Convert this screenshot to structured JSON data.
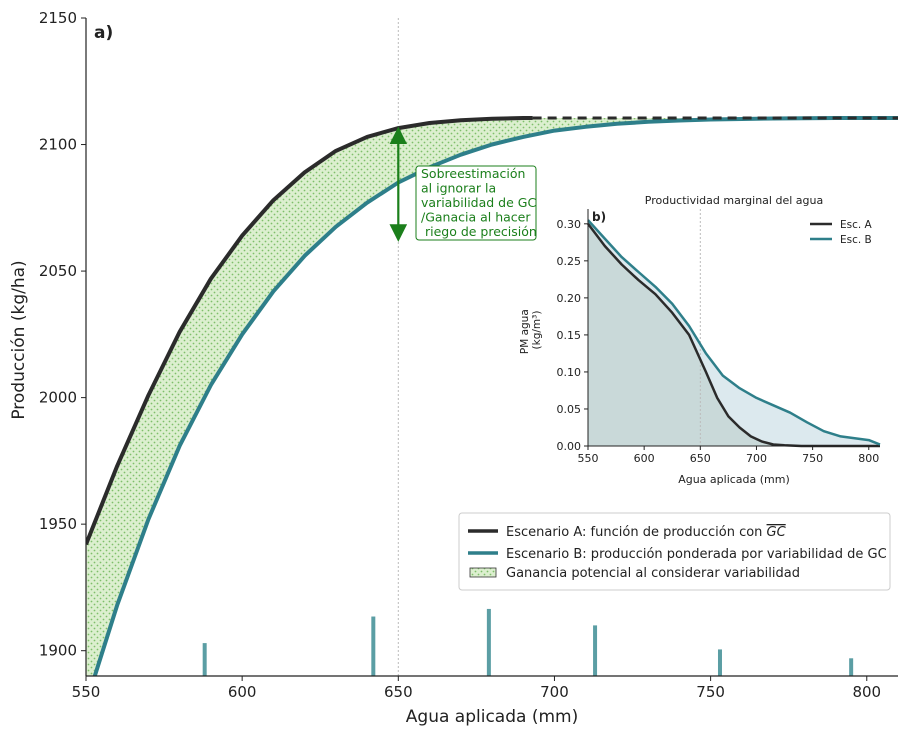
{
  "chart_data": [
    {
      "type": "line",
      "panel_label": "a)",
      "xlabel": "Agua aplicada (mm)",
      "ylabel": "Producción (kg/ha)",
      "xlim": [
        550,
        810
      ],
      "ylim": [
        1890,
        2150
      ],
      "x_ticks": [
        550,
        600,
        650,
        700,
        750,
        800
      ],
      "y_ticks": [
        1900,
        1950,
        2000,
        2050,
        2100,
        2150
      ],
      "grid": false,
      "legend_position": "lower-right",
      "series": [
        {
          "name": "Escenario A: función de producción con GC",
          "overline_part": "GC",
          "color": "#2b2b2b",
          "x": [
            550,
            560,
            570,
            580,
            590,
            600,
            610,
            620,
            630,
            640,
            650,
            660,
            670,
            680,
            690,
            693
          ],
          "y": [
            1942,
            1973,
            2001,
            2026,
            2047,
            2064,
            2078,
            2089,
            2097.5,
            2103,
            2106.5,
            2108.5,
            2109.6,
            2110.2,
            2110.5,
            2110.5
          ],
          "extension_dashed": {
            "x": [
              693,
              810
            ],
            "y": [
              2110.5,
              2110.5
            ]
          }
        },
        {
          "name": "Escenario B: producción ponderada por variabilidad de GC",
          "color": "#2e7f8a",
          "x": [
            550,
            560,
            570,
            580,
            590,
            600,
            610,
            620,
            630,
            640,
            650,
            660,
            670,
            680,
            690,
            700,
            710,
            720,
            730,
            740,
            750,
            760,
            770,
            780,
            790,
            800,
            810
          ],
          "y": [
            1879,
            1918,
            1952,
            1981,
            2005,
            2025,
            2042,
            2056,
            2067.5,
            2077,
            2085,
            2091,
            2096,
            2100,
            2103,
            2105.5,
            2107,
            2108.2,
            2109,
            2109.5,
            2109.9,
            2110.1,
            2110.3,
            2110.4,
            2110.5,
            2110.5,
            2110.5
          ]
        }
      ],
      "shaded_area": {
        "name": "Ganancia potencial al considerar variabilidad",
        "color": "#d7ecc8",
        "dot_color": "#7fbf6a"
      },
      "reference_line_x": 650,
      "annotation": {
        "lines": [
          "Sobreestimación",
          "al ignorar la",
          "variabilidad de GC",
          "/Ganacia al hacer",
          " riego de precisión"
        ],
        "arrow_x": 650,
        "arrow_from": 2084,
        "arrow_to": 2106,
        "color": "#1b7f1b"
      },
      "distribution_bars": {
        "x": [
          588,
          642,
          679,
          713,
          753,
          795
        ],
        "top": [
          1903,
          1913.5,
          1916.5,
          1910,
          1900.5,
          1897
        ],
        "color": "#5b9ea4"
      }
    },
    {
      "type": "area",
      "panel_label": "b)",
      "title": "Productividad marginal del agua",
      "xlabel": "Agua aplicada (mm)",
      "ylabel_lines": [
        "PM agua",
        "(kg/m³)"
      ],
      "xlim": [
        550,
        810
      ],
      "ylim": [
        0,
        0.32
      ],
      "x_ticks": [
        550,
        600,
        650,
        700,
        750,
        800
      ],
      "y_ticks": [
        0.0,
        0.05,
        0.1,
        0.15,
        0.2,
        0.25,
        0.3
      ],
      "legend_position": "top-right",
      "reference_line_x": 650,
      "series": [
        {
          "name": "Esc. A",
          "color": "#2b2b2b",
          "fill": "#c9d9d9",
          "x": [
            550,
            565,
            580,
            595,
            610,
            625,
            640,
            655,
            665,
            675,
            685,
            695,
            705,
            715,
            725,
            740,
            760,
            780,
            800,
            810
          ],
          "y": [
            0.3,
            0.27,
            0.245,
            0.224,
            0.205,
            0.18,
            0.15,
            0.1,
            0.065,
            0.04,
            0.025,
            0.013,
            0.006,
            0.002,
            0.001,
            0.0,
            0.0,
            0.0,
            0.0,
            0.0
          ]
        },
        {
          "name": "Esc. B",
          "color": "#2e7f8a",
          "fill": "#dce9ee",
          "x": [
            550,
            565,
            580,
            595,
            610,
            625,
            640,
            655,
            670,
            685,
            700,
            715,
            730,
            745,
            760,
            775,
            790,
            800,
            805,
            810
          ],
          "y": [
            0.305,
            0.28,
            0.255,
            0.235,
            0.215,
            0.192,
            0.162,
            0.125,
            0.095,
            0.078,
            0.065,
            0.055,
            0.045,
            0.032,
            0.02,
            0.013,
            0.01,
            0.008,
            0.005,
            0.002
          ]
        }
      ]
    }
  ]
}
